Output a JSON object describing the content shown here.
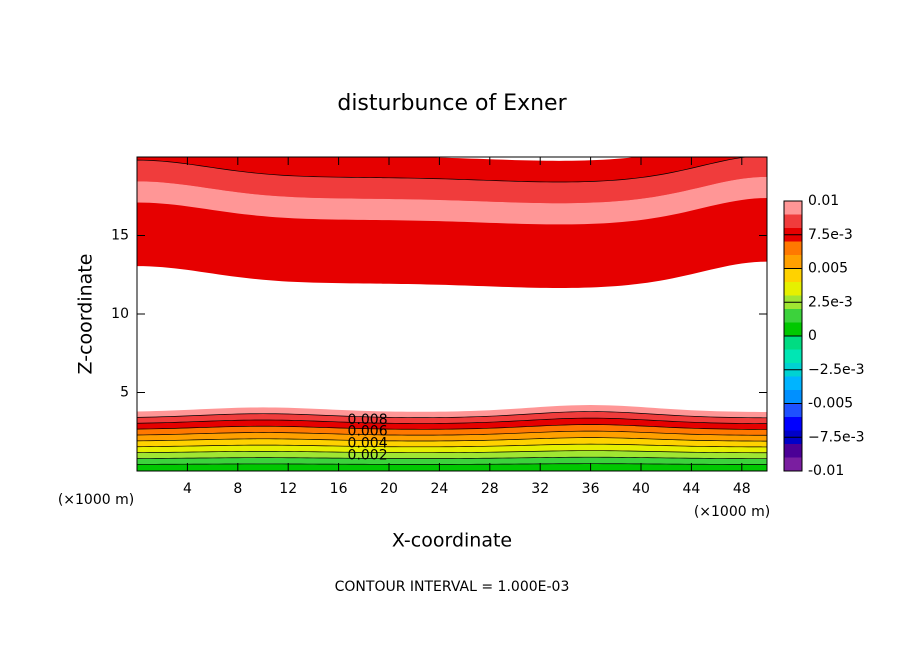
{
  "chart_data": {
    "type": "contour",
    "title": "disturbunce of Exner",
    "x_label": "X-coordinate",
    "y_label": "Z-coordinate",
    "x_unit": "(×1000 m)",
    "footer": "CONTOUR INTERVAL = 1.000E-03",
    "xlim": [
      0,
      50
    ],
    "xticks": [
      4,
      8,
      12,
      16,
      20,
      24,
      28,
      32,
      36,
      40,
      44,
      48
    ],
    "ylim": [
      0,
      20
    ],
    "yticks": [
      5,
      10,
      15
    ],
    "contour_labels": [
      0.008,
      0.006,
      0.004,
      0.002
    ],
    "colorbar": {
      "levels": [
        -0.01,
        -0.009,
        -0.008,
        -0.007,
        -0.006,
        -0.005,
        -0.004,
        -0.003,
        -0.002,
        -0.001,
        0,
        0.001,
        0.002,
        0.003,
        0.004,
        0.005,
        0.006,
        0.007,
        0.008,
        0.009,
        0.01
      ],
      "colors": [
        "#7a1ea0",
        "#4b0096",
        "#0000c8",
        "#0000ff",
        "#1e50ff",
        "#0090ff",
        "#00b4ff",
        "#00d2d2",
        "#00e6b4",
        "#00dc82",
        "#00c800",
        "#3cd23c",
        "#a0e632",
        "#e6f000",
        "#ffd200",
        "#ffa000",
        "#ff7800",
        "#e60000",
        "#f03c3c",
        "#ff9696"
      ],
      "ticks": [
        -0.01,
        {
          "value": -0.0075,
          "label": "−7.5e-3"
        },
        -0.005,
        {
          "value": -0.0025,
          "label": "−2.5e-3"
        },
        0,
        {
          "value": 0.0025,
          "label": "2.5e-3"
        },
        0.005,
        {
          "value": 0.0075,
          "label": "7.5e-3"
        },
        0.01
      ]
    }
  }
}
